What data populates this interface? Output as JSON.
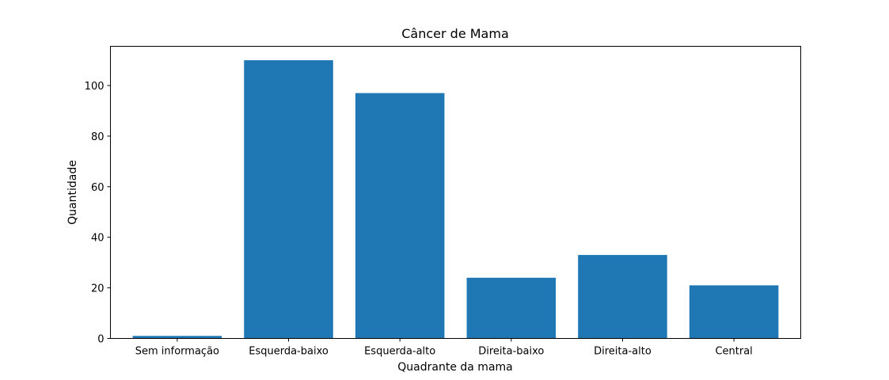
{
  "chart_data": {
    "type": "bar",
    "title": "Câncer de Mama",
    "xlabel": "Quadrante da mama",
    "ylabel": "Quantidade",
    "categories": [
      "Sem informação",
      "Esquerda-baixo",
      "Esquerda-alto",
      "Direita-baixo",
      "Direita-alto",
      "Central"
    ],
    "values": [
      1,
      110,
      97,
      24,
      33,
      21
    ],
    "ylim": [
      0,
      115.5
    ],
    "yticks": [
      0,
      20,
      40,
      60,
      80,
      100
    ],
    "bar_color": "#1f77b4",
    "grid": false,
    "legend": "none"
  }
}
